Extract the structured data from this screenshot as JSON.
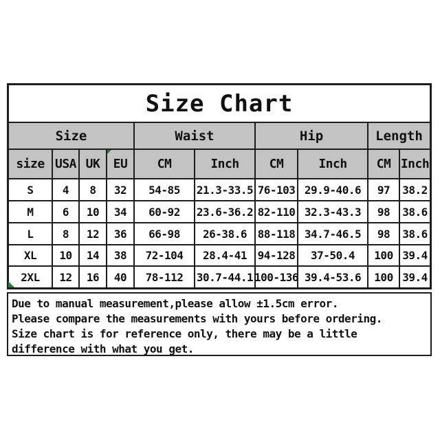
{
  "title": "Size Chart",
  "colors": {
    "header_bg": "#c3c3c3",
    "border": "#1d1d1d",
    "corner_marker_green": "#2e7d32",
    "background": "#ffffff",
    "text": "#111111"
  },
  "table": {
    "group_headers": [
      {
        "label": "Size",
        "span": 4
      },
      {
        "label": "Waist",
        "span": 2
      },
      {
        "label": "Hip",
        "span": 2
      },
      {
        "label": "Length",
        "span": 2
      }
    ],
    "sub_headers": [
      "size",
      "USA",
      "UK",
      "EU",
      "CM",
      "Inch",
      "CM",
      "Inch",
      "CM",
      "Inch"
    ],
    "rows": [
      [
        "S",
        "4",
        "8",
        "32",
        "54-85",
        "21.3-33.5",
        "76-103",
        "29.9-40.6",
        "97",
        "38.2"
      ],
      [
        "M",
        "6",
        "10",
        "34",
        "60-92",
        "23.6-36.2",
        "82-110",
        "32.3-43.3",
        "98",
        "38.6"
      ],
      [
        "L",
        "8",
        "12",
        "36",
        "66-98",
        "26-38.6",
        "88-118",
        "34.7-46.5",
        "98",
        "38.6"
      ],
      [
        "XL",
        "10",
        "14",
        "38",
        "72-104",
        "28.4-41",
        "94-128",
        "37-50.4",
        "100",
        "39.4"
      ],
      [
        "2XL",
        "12",
        "16",
        "40",
        "78-112",
        "30.7-44.1",
        "100-136",
        "39.4-53.6",
        "100",
        "39.4"
      ]
    ]
  },
  "notes": {
    "lines": [
      "Due to manual measurement,please allow ±1.5cm error.",
      "Please compare the measurements with yours before ordering.",
      "Size chart is for reference only, there may be a little",
      "difference with what you get."
    ]
  }
}
